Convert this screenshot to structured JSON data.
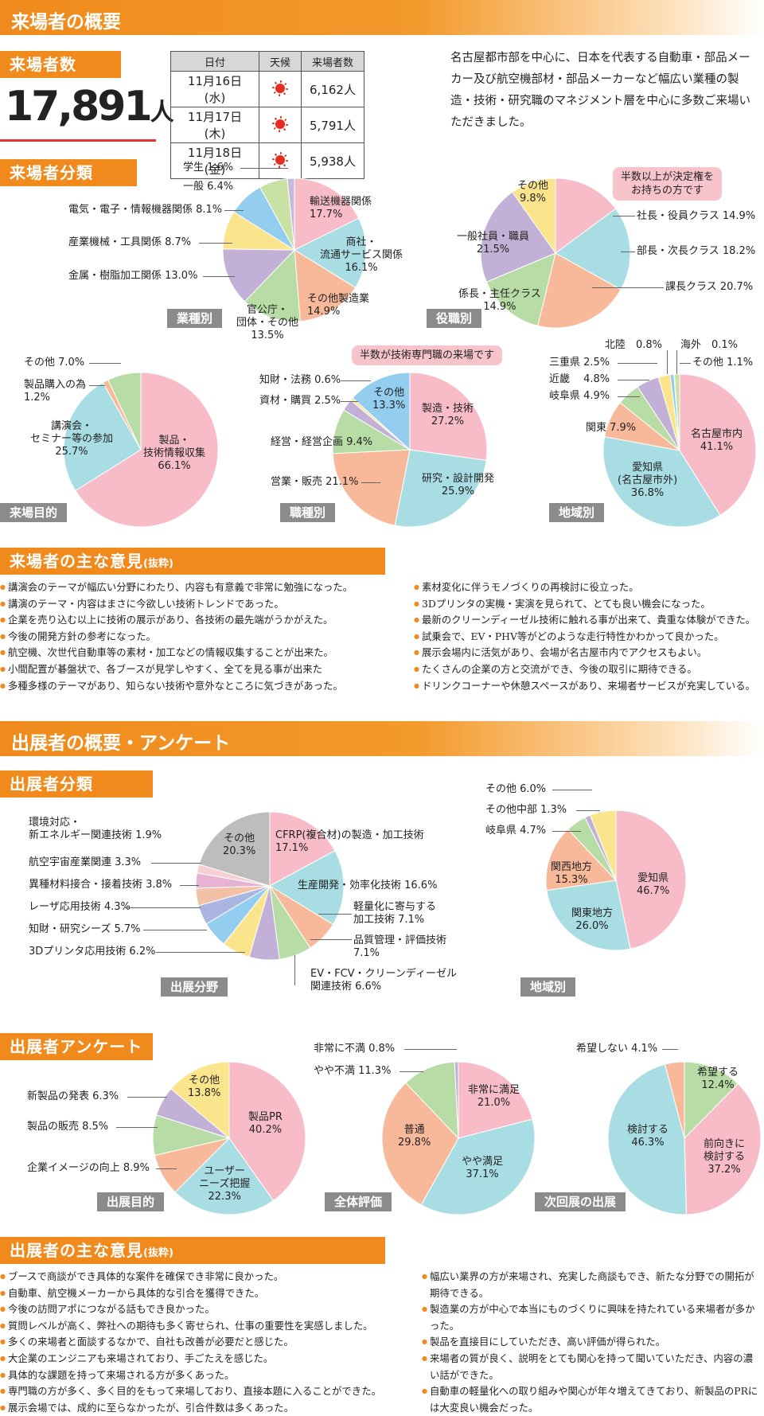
{
  "section1_title": "来場者の概要",
  "visitors": {
    "heading": "来場者数",
    "total": "17,891",
    "unit": "人",
    "table_headers": [
      "日付",
      "天候",
      "来場者数"
    ],
    "rows": [
      {
        "date": "11月16日(水)",
        "weather_icon": "sun-icon",
        "count": "6,162人"
      },
      {
        "date": "11月17日(木)",
        "weather_icon": "sun-icon",
        "count": "5,791人"
      },
      {
        "date": "11月18日(金)",
        "weather_icon": "sun-icon",
        "count": "5,938人"
      }
    ],
    "intro": "名古屋都市部を中心に、日本を代表する自動車・部品メーカー及び航空機部材・部品メーカーなど幅広い業種の製造・技術・研究職のマネジメント層を中心に多数ご来場いただきました。"
  },
  "classification_heading": "来場者分類",
  "colors": {
    "orange": "#f08a1c",
    "pink": "#f7bcc8",
    "cyan": "#a9dde4",
    "green": "#b7dca5",
    "salmon": "#f8b99b",
    "lavender": "#c3b0d6",
    "yellow": "#fbe58c",
    "blue": "#93cdef",
    "gray": "#bdbdbd"
  },
  "charts": {
    "industry": {
      "tag": "業種別",
      "labels": [
        "輸送機器関係\n17.7%",
        "商社・\n流通サービス関係\n16.1%",
        "その他製造業\n14.9%",
        "官公庁・\n団体・その他\n13.5%",
        "金属・樹脂加工関係 13.0%",
        "産業機械・工具関係 8.7%",
        "電気・電子・情報機器関係 8.1%",
        "一般 6.4%",
        "学生 1.6%"
      ]
    },
    "position": {
      "tag": "役職別",
      "bubble": "半数以上が決定権を\nお持ちの方です",
      "labels": [
        "社長・役員クラス 14.9%",
        "部長・次長クラス 18.2%",
        "課長クラス 20.7%",
        "係長・主任クラス\n14.9%",
        "一般社員・職員\n21.5%",
        "その他\n9.8%"
      ]
    },
    "purpose": {
      "tag": "来場目的",
      "labels": [
        "製品・\n技術情報収集\n66.1%",
        "講演会・\nセミナー等の参加\n25.7%",
        "製品購入の為\n1.2%",
        "その他 7.0%"
      ]
    },
    "job": {
      "tag": "職種別",
      "bubble": "半数が技術専門職の来場です",
      "labels": [
        "製造・技術\n27.2%",
        "研究・設計開発\n25.9%",
        "営業・販売 21.1%",
        "経営・経営企画 9.4%",
        "資材・購買 2.5%",
        "知財・法務 0.6%",
        "その他\n13.3%"
      ]
    },
    "region": {
      "tag": "地域別",
      "labels": [
        "名古屋市内\n41.1%",
        "愛知県\n(名古屋市外)\n36.8%",
        "関東 7.9%",
        "岐阜県 4.9%",
        "近畿　 4.8%",
        "三重県 2.5%",
        "北陸　0.8%",
        "海外　0.1%",
        "その他 1.1%"
      ]
    },
    "ex_field": {
      "tag": "出展分野",
      "labels": [
        "CFRP(複合材)の製造・加工技術\n17.1%",
        "生産開発・効率化技術 16.6%",
        "軽量化に寄与する\n加工技術 7.1%",
        "品質管理・評価技術\n7.1%",
        "EV・FCV・クリーンディーゼル\n関連技術 6.6%",
        "3Dプリンタ応用技術 6.2%",
        "知財・研究シーズ 5.7%",
        "レーザ応用技術 4.3%",
        "異種材料接合・接着技術 3.8%",
        "航空宇宙産業関連 3.3%",
        "環境対応・\n新エネルギー関連技術 1.9%",
        "その他\n20.3%"
      ]
    },
    "ex_region": {
      "tag": "地域別",
      "labels": [
        "愛知県\n46.7%",
        "関東地方\n26.0%",
        "関西地方\n15.3%",
        "岐阜県 4.7%",
        "その他中部 1.3%",
        "その他 6.0%"
      ]
    },
    "ex_purpose": {
      "tag": "出展目的",
      "labels": [
        "製品PR\n40.2%",
        "ユーザー\nニーズ把握\n22.3%",
        "企業イメージの向上 8.9%",
        "製品の販売 8.5%",
        "新製品の発表 6.3%",
        "その他\n13.8%"
      ]
    },
    "ex_eval": {
      "tag": "全体評価",
      "labels": [
        "非常に満足\n21.0%",
        "やや満足\n37.1%",
        "普通\n29.8%",
        "やや不満 11.3%",
        "非常に不満 0.8%"
      ]
    },
    "ex_next": {
      "tag": "次回展の出展",
      "labels": [
        "希望する\n12.4%",
        "前向きに\n検討する\n37.2%",
        "検討する\n46.3%",
        "希望しない 4.1%"
      ]
    }
  },
  "chart_data": [
    {
      "type": "pie",
      "categories": [
        "輸送機器関係",
        "商社・流通サービス関係",
        "その他製造業",
        "官公庁・団体・その他",
        "金属・樹脂加工関係",
        "産業機械・工具関係",
        "電気・電子・情報機器関係",
        "一般",
        "学生"
      ],
      "values": [
        17.7,
        16.1,
        14.9,
        13.5,
        13.0,
        8.7,
        8.1,
        6.4,
        1.6
      ],
      "colors": [
        "#f7bcc8",
        "#a9dde4",
        "#f8b99b",
        "#b7dca5",
        "#c3b0d6",
        "#fbe58c",
        "#93cdef",
        "#c9e2a4",
        "#c6b9e0"
      ],
      "title": "業種別"
    },
    {
      "type": "pie",
      "categories": [
        "社長・役員クラス",
        "部長・次長クラス",
        "課長クラス",
        "係長・主任クラス",
        "一般社員・職員",
        "その他"
      ],
      "values": [
        14.9,
        18.2,
        20.7,
        14.9,
        21.5,
        9.8
      ],
      "colors": [
        "#f7bcc8",
        "#a9dde4",
        "#f8b99b",
        "#b7dca5",
        "#c3b0d6",
        "#fbe58c"
      ],
      "title": "役職別"
    },
    {
      "type": "pie",
      "categories": [
        "製品・技術情報収集",
        "講演会・セミナー等の参加",
        "製品購入の為",
        "その他"
      ],
      "values": [
        66.1,
        25.7,
        1.2,
        7.0
      ],
      "colors": [
        "#f7bcc8",
        "#a9dde4",
        "#f8b99b",
        "#b7dca5"
      ],
      "title": "来場目的"
    },
    {
      "type": "pie",
      "categories": [
        "製造・技術",
        "研究・設計開発",
        "営業・販売",
        "経営・経営企画",
        "資材・購買",
        "知財・法務",
        "その他"
      ],
      "values": [
        27.2,
        25.9,
        21.1,
        9.4,
        2.5,
        0.6,
        13.3
      ],
      "colors": [
        "#f7bcc8",
        "#a9dde4",
        "#f8b99b",
        "#b7dca5",
        "#c3b0d6",
        "#fbe58c",
        "#93cdef"
      ],
      "title": "職種別"
    },
    {
      "type": "pie",
      "categories": [
        "名古屋市内",
        "愛知県(名古屋市外)",
        "関東",
        "岐阜県",
        "近畿",
        "三重県",
        "北陸",
        "海外",
        "その他"
      ],
      "values": [
        41.1,
        36.8,
        7.9,
        4.9,
        4.8,
        2.5,
        0.8,
        0.1,
        1.1
      ],
      "colors": [
        "#f7bcc8",
        "#a9dde4",
        "#f8b99b",
        "#b7dca5",
        "#c3b0d6",
        "#fbe58c",
        "#93cdef",
        "#9fd4c9",
        "#c9e2a4"
      ],
      "title": "地域別"
    },
    {
      "type": "pie",
      "categories": [
        "CFRP(複合材)の製造・加工技術",
        "生産開発・効率化技術",
        "軽量化に寄与する加工技術",
        "品質管理・評価技術",
        "EV・FCV・クリーンディーゼル関連技術",
        "3Dプリンタ応用技術",
        "知財・研究シーズ",
        "レーザ応用技術",
        "異種材料接合・接着技術",
        "航空宇宙産業関連",
        "環境対応・新エネルギー関連技術",
        "その他"
      ],
      "values": [
        17.1,
        16.6,
        7.1,
        7.1,
        6.6,
        6.2,
        5.7,
        4.3,
        3.8,
        3.3,
        1.9,
        20.3
      ],
      "colors": [
        "#f7bcc8",
        "#a9dde4",
        "#f8b99b",
        "#b7dca5",
        "#c3b0d6",
        "#fbe58c",
        "#93cdef",
        "#aab6e0",
        "#f3c2a6",
        "#e6b3d3",
        "#f7d0d6",
        "#bdbdbd"
      ],
      "title": "出展分野"
    },
    {
      "type": "pie",
      "categories": [
        "愛知県",
        "関東地方",
        "関西地方",
        "岐阜県",
        "その他中部",
        "その他"
      ],
      "values": [
        46.7,
        26.0,
        15.3,
        4.7,
        1.3,
        6.0
      ],
      "colors": [
        "#f7bcc8",
        "#a9dde4",
        "#f8b99b",
        "#b7dca5",
        "#c3b0d6",
        "#fbe58c"
      ],
      "title": "地域別"
    },
    {
      "type": "pie",
      "categories": [
        "製品PR",
        "ユーザーニーズ把握",
        "企業イメージの向上",
        "製品の販売",
        "新製品の発表",
        "その他"
      ],
      "values": [
        40.2,
        22.3,
        8.9,
        8.5,
        6.3,
        13.8
      ],
      "colors": [
        "#f7bcc8",
        "#a9dde4",
        "#f8b99b",
        "#b7dca5",
        "#c3b0d6",
        "#fbe58c"
      ],
      "title": "出展目的"
    },
    {
      "type": "pie",
      "categories": [
        "非常に満足",
        "やや満足",
        "普通",
        "やや不満",
        "非常に不満"
      ],
      "values": [
        21.0,
        37.1,
        29.8,
        11.3,
        0.8
      ],
      "colors": [
        "#f7bcc8",
        "#a9dde4",
        "#f8b99b",
        "#b7dca5",
        "#c3b0d6"
      ],
      "title": "全体評価"
    },
    {
      "type": "pie",
      "categories": [
        "希望する",
        "前向きに検討する",
        "検討する",
        "希望しない"
      ],
      "values": [
        12.4,
        37.2,
        46.3,
        4.1
      ],
      "colors": [
        "#b7dca5",
        "#f7bcc8",
        "#a9dde4",
        "#f8b99b"
      ],
      "title": "次回展の出展"
    }
  ],
  "visitor_opinions": {
    "heading": "来場者の主な意見",
    "heading_note": "(抜粋)",
    "left": [
      "講演会のテーマが幅広い分野にわたり、内容も有意義で非常に勉強になった。",
      "講演のテーマ・内容はまさに今欲しい技術トレンドであった。",
      "企業を売り込む以上に技術の展示があり、各技術の最先端がうかがえた。",
      "今後の開発方針の参考になった。",
      "航空機、次世代自動車等の素材・加工などの情報収集することが出来た。",
      "小間配置が碁盤状で、各ブースが見学しやすく、全てを見る事が出来た",
      "多種多様のテーマがあり、知らない技術や意外なところに気づきがあった。"
    ],
    "right": [
      "素材変化に伴うモノづくりの再検討に役立った。",
      "3Dプリンタの実機・実演を見られて、とても良い機会になった。",
      "最新のクリーンディーゼル技術に触れる事が出来て、貴重な体験ができた。",
      "試乗会で、EV・PHV等がどのような走行特性かわかって良かった。",
      "展示会場内に活気があり、会場が名古屋市内でアクセスもよい。",
      "たくさんの企業の方と交流ができ、今後の取引に期待できる。",
      "ドリンクコーナーや休憩スペースがあり、来場者サービスが充実している。"
    ]
  },
  "section2_title": "出展者の概要・アンケート",
  "exhibitor_classification_heading": "出展者分類",
  "exhibitor_survey_heading": "出展者アンケート",
  "exhibitor_opinions": {
    "heading": "出展者の主な意見",
    "heading_note": "(抜粋)",
    "left": [
      "ブースで商談ができ具体的な案件を確保でき非常に良かった。",
      "自動車、航空機メーカーから具体的な引合を獲得できた。",
      "今後の訪問アポにつながる話もでき良かった。",
      "質問レベルが高く、弊社への期待も多く寄せられ、仕事の重要性を実感しました。",
      "多くの来場者と面談するなかで、自社も改善が必要だと感じた。",
      "大企業のエンジニアも来場されており、手ごたえを感じた。",
      "具体的な課題を持って来場される方が多くあった。",
      "専門職の方が多く、多く目的をもって来場しており、直接本題に入ることができた。",
      "展示会場では、成約に至らなかったが、引合件数は多くあった。"
    ],
    "right": [
      "幅広い業界の方が来場され、充実した商談もでき、新たな分野での開拓が期待できる。",
      "製造業の方が中心で本当にものづくりに興味を持たれている来場者が多かった。",
      "製品を直接目にしていただき、高い評価が得られた。",
      "来場者の質が良く、説明をとても関心を持って聞いていただき、内容の濃い話ができた。",
      "自動車の軽量化への取り組みや関心が年々増えてきており、新製品のPRには大変良い機会だった。"
    ]
  }
}
